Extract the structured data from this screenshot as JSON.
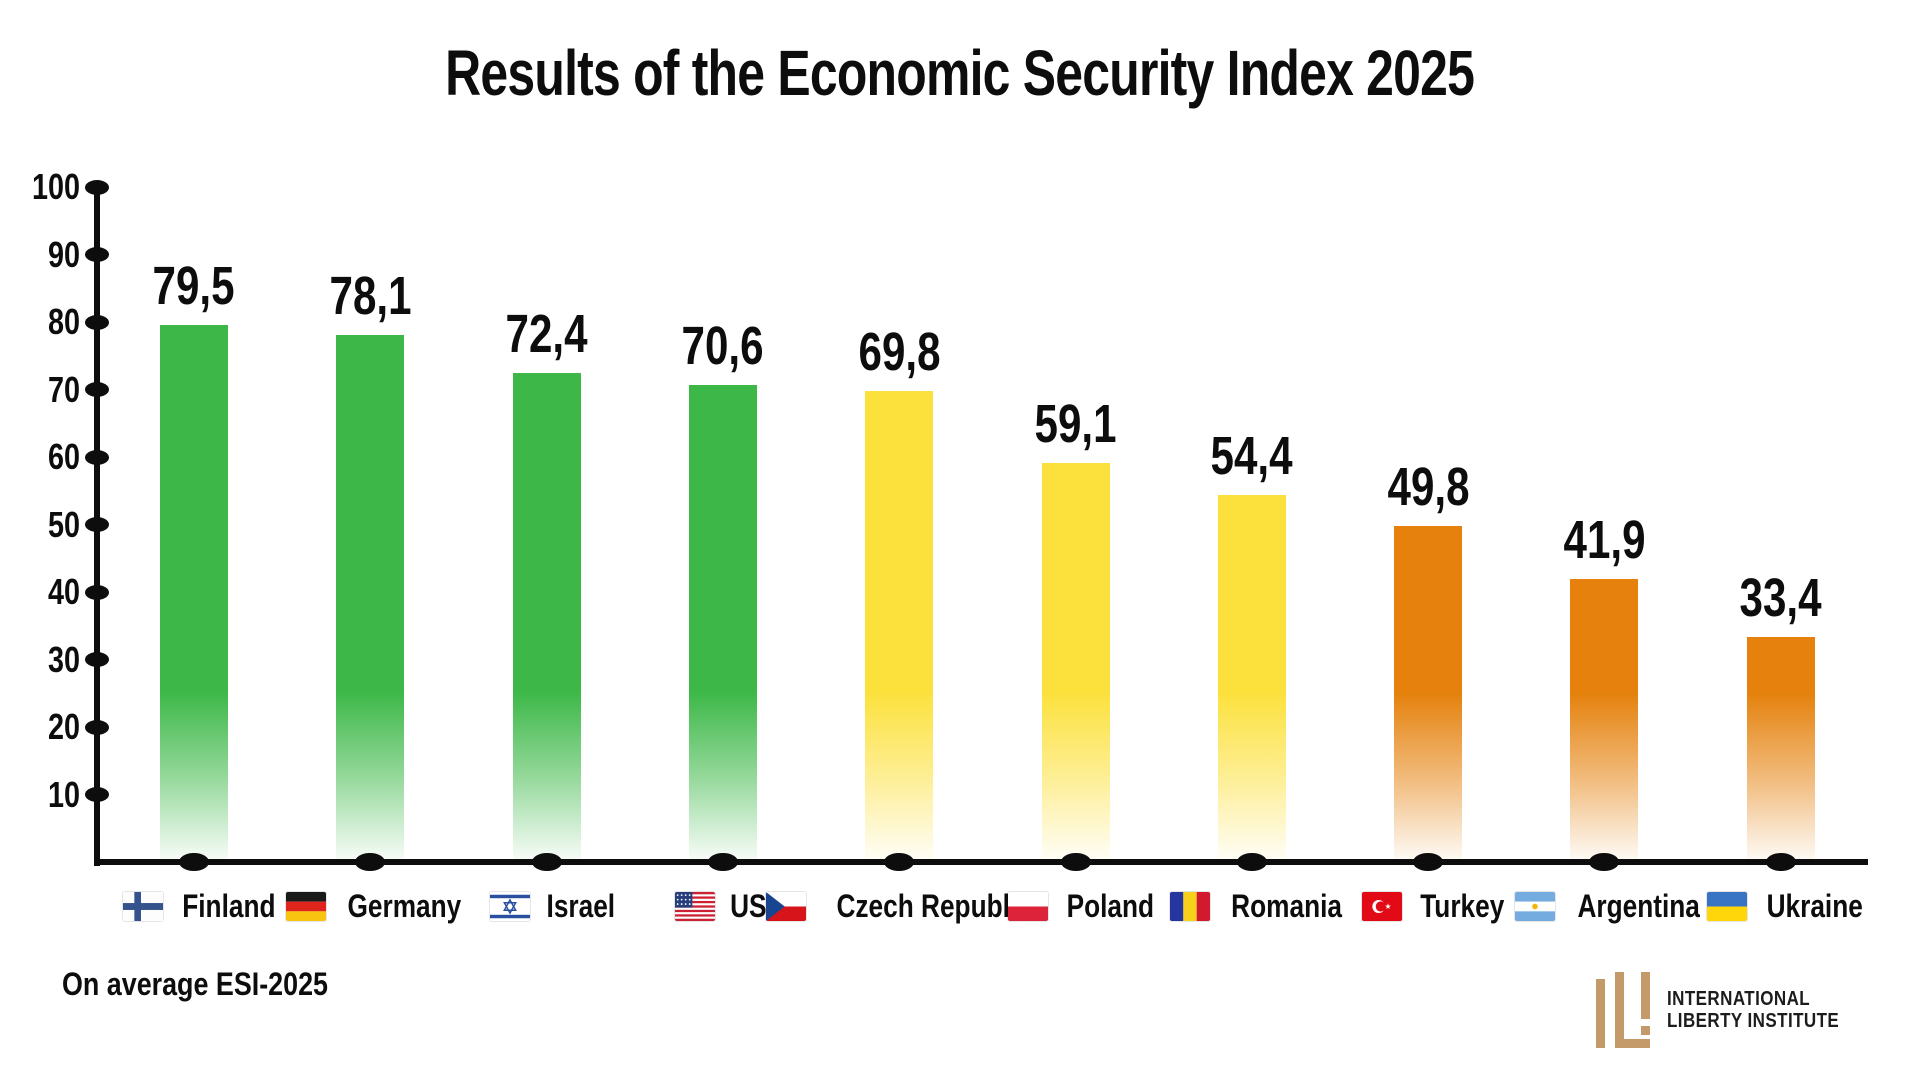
{
  "title": "Results of the Economic Security Index 2025",
  "footer_note": "On average ESI-2025",
  "logo": {
    "line1": "INTERNATIONAL",
    "line2": "LIBERTY INSTITUTE",
    "monogram": "ILI-monogram",
    "monogram_color": "#c49a6b"
  },
  "colors": {
    "green": "#3db848",
    "yellow": "#fce13c",
    "orange": "#e5810c",
    "axis": "#0d0d0d",
    "text": "#0d0d0d"
  },
  "chart_data": {
    "type": "bar",
    "title": "Results of the Economic Security Index 2025",
    "xlabel": "",
    "ylabel": "",
    "ylim": [
      0,
      100
    ],
    "yticks": [
      10,
      20,
      30,
      40,
      50,
      60,
      70,
      80,
      90,
      100
    ],
    "grid": false,
    "legend": "none",
    "decimal_separator": "comma",
    "categories": [
      "Finland",
      "Germany",
      "Israel",
      "USA",
      "Czech Republic",
      "Poland",
      "Romania",
      "Turkey",
      "Argentina",
      "Ukraine"
    ],
    "flags": [
      "finland",
      "germany",
      "israel",
      "usa",
      "czech-republic",
      "poland",
      "romania",
      "turkey",
      "argentina",
      "ukraine"
    ],
    "values": [
      79.5,
      78.1,
      72.4,
      70.6,
      69.8,
      59.1,
      54.4,
      49.8,
      41.9,
      33.4
    ],
    "value_labels": [
      "79,5",
      "78,1",
      "72,4",
      "70,6",
      "69,8",
      "59,1",
      "54,4",
      "49,8",
      "41,9",
      "33,4"
    ],
    "bar_colors": [
      "green",
      "green",
      "green",
      "green",
      "yellow",
      "yellow",
      "yellow",
      "orange",
      "orange",
      "orange"
    ],
    "bar_style": "solid color fading to white at the base"
  }
}
